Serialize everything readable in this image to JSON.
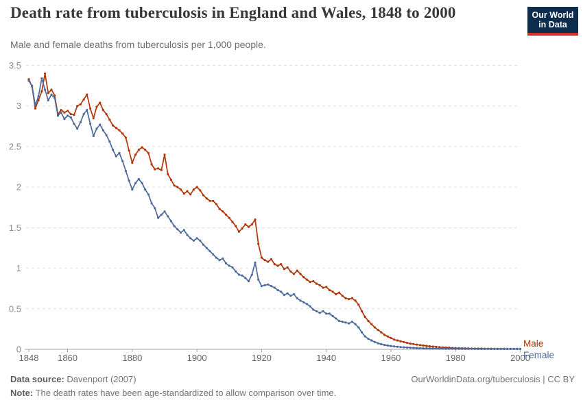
{
  "header": {
    "title": "Death rate from tuberculosis in England and Wales, 1848 to 2000",
    "subtitle": "Male and female deaths from tuberculosis per 1,000 people.",
    "logo": {
      "line1": "Our World",
      "line2": "in Data"
    }
  },
  "colors": {
    "male": "#b13507",
    "female": "#4c6a9c",
    "grid": "#e0e0e0",
    "axis": "#a0a0a0",
    "x_tick_label": "#636363",
    "y_tick_label": "#8c8c8c",
    "logo_bg": "#0d2d4f",
    "logo_stripe": "#d0342c"
  },
  "chart_data": {
    "type": "line",
    "title": "Death rate from tuberculosis in England and Wales, 1848 to 2000",
    "subtitle": "Male and female deaths from tuberculosis per 1,000 people.",
    "xlabel": "",
    "ylabel": "",
    "xlim": [
      1848,
      2000
    ],
    "ylim": [
      0,
      3.5
    ],
    "x_ticks": [
      1848,
      1860,
      1880,
      1900,
      1920,
      1940,
      1960,
      1980,
      2000
    ],
    "y_ticks": [
      0,
      0.5,
      1,
      1.5,
      2,
      2.5,
      3,
      3.5
    ],
    "grid": "horizontal-dashed",
    "legend_position": "end-of-line",
    "x_start": 1848,
    "x_step": 1,
    "series": [
      {
        "name": "Male",
        "color": "#b13507",
        "values": [
          3.33,
          3.24,
          2.97,
          3.07,
          3.18,
          3.4,
          3.16,
          3.2,
          3.13,
          2.9,
          2.95,
          2.92,
          2.94,
          2.9,
          2.89,
          3.0,
          3.02,
          3.08,
          3.14,
          2.97,
          2.85,
          2.99,
          3.04,
          2.95,
          2.9,
          2.83,
          2.76,
          2.73,
          2.7,
          2.66,
          2.61,
          2.45,
          2.3,
          2.4,
          2.46,
          2.49,
          2.46,
          2.42,
          2.28,
          2.22,
          2.23,
          2.21,
          2.4,
          2.16,
          2.09,
          2.02,
          2.0,
          1.97,
          1.92,
          1.95,
          1.91,
          1.97,
          2.0,
          1.96,
          1.9,
          1.86,
          1.83,
          1.83,
          1.79,
          1.73,
          1.7,
          1.66,
          1.62,
          1.57,
          1.52,
          1.45,
          1.49,
          1.54,
          1.51,
          1.54,
          1.6,
          1.3,
          1.13,
          1.1,
          1.08,
          1.11,
          1.05,
          1.03,
          1.05,
          0.99,
          1.01,
          0.96,
          0.93,
          0.97,
          0.93,
          0.89,
          0.86,
          0.83,
          0.84,
          0.81,
          0.79,
          0.76,
          0.77,
          0.73,
          0.71,
          0.68,
          0.7,
          0.66,
          0.63,
          0.62,
          0.63,
          0.6,
          0.55,
          0.47,
          0.4,
          0.35,
          0.31,
          0.27,
          0.24,
          0.21,
          0.18,
          0.16,
          0.14,
          0.12,
          0.11,
          0.1,
          0.09,
          0.08,
          0.07,
          0.065,
          0.058,
          0.052,
          0.047,
          0.042,
          0.038,
          0.034,
          0.03,
          0.027,
          0.024,
          0.022,
          0.02,
          0.017,
          0.015,
          0.014,
          0.013,
          0.012,
          0.011,
          0.01,
          0.01,
          0.009,
          0.009,
          0.008,
          0.008,
          0.008,
          0.007,
          0.007,
          0.007,
          0.007,
          0.006,
          0.006,
          0.006,
          0.006,
          0.006
        ]
      },
      {
        "name": "Female",
        "color": "#4c6a9c",
        "values": [
          3.31,
          3.25,
          3.01,
          3.12,
          3.34,
          3.2,
          3.07,
          3.14,
          3.1,
          2.88,
          2.92,
          2.84,
          2.88,
          2.86,
          2.78,
          2.72,
          2.8,
          2.9,
          2.95,
          2.78,
          2.63,
          2.72,
          2.77,
          2.7,
          2.64,
          2.56,
          2.46,
          2.38,
          2.42,
          2.32,
          2.2,
          2.08,
          1.97,
          2.05,
          2.1,
          2.05,
          1.97,
          1.91,
          1.8,
          1.74,
          1.62,
          1.66,
          1.7,
          1.64,
          1.58,
          1.52,
          1.48,
          1.44,
          1.47,
          1.41,
          1.37,
          1.34,
          1.37,
          1.34,
          1.29,
          1.25,
          1.21,
          1.17,
          1.13,
          1.1,
          1.12,
          1.06,
          1.03,
          1.01,
          0.96,
          0.92,
          0.91,
          0.88,
          0.84,
          0.92,
          1.07,
          0.86,
          0.78,
          0.79,
          0.8,
          0.78,
          0.76,
          0.73,
          0.71,
          0.67,
          0.69,
          0.66,
          0.68,
          0.63,
          0.6,
          0.58,
          0.56,
          0.53,
          0.49,
          0.47,
          0.45,
          0.47,
          0.44,
          0.44,
          0.41,
          0.38,
          0.35,
          0.34,
          0.33,
          0.32,
          0.34,
          0.31,
          0.27,
          0.21,
          0.16,
          0.13,
          0.11,
          0.09,
          0.075,
          0.063,
          0.054,
          0.047,
          0.041,
          0.036,
          0.032,
          0.028,
          0.025,
          0.022,
          0.02,
          0.018,
          0.016,
          0.014,
          0.013,
          0.012,
          0.011,
          0.01,
          0.01,
          0.009,
          0.009,
          0.008,
          0.008,
          0.007,
          0.007,
          0.007,
          0.006,
          0.006,
          0.006,
          0.006,
          0.006,
          0.005,
          0.005,
          0.005,
          0.005,
          0.005,
          0.005,
          0.005,
          0.005,
          0.005,
          0.005,
          0.005,
          0.005,
          0.005,
          0.005
        ]
      }
    ]
  },
  "footer": {
    "source_label": "Data source:",
    "source_value": " Davenport (2007)",
    "link": "OurWorldinData.org/tuberculosis | CC BY",
    "note_label": "Note:",
    "note_value": " The death rates have been age-standardized to allow comparison over time."
  }
}
